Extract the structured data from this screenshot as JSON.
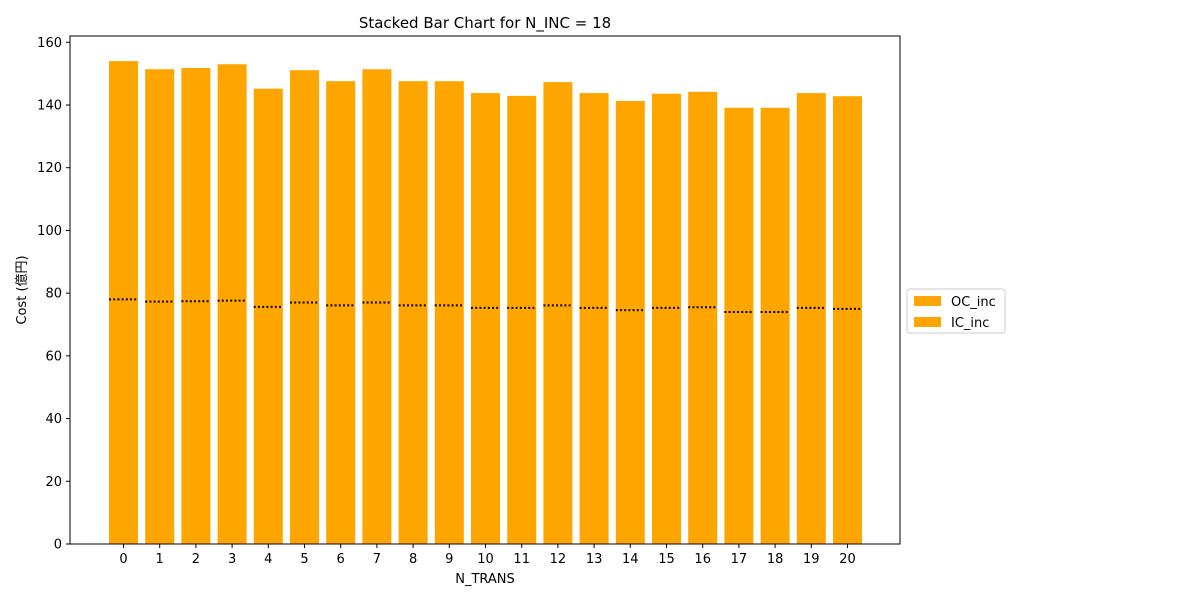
{
  "chart_data": {
    "type": "bar",
    "stacked": true,
    "title": "Stacked Bar Chart for N_INC = 18",
    "xlabel": "N_TRANS",
    "ylabel": "Cost (億円)",
    "categories": [
      "0",
      "1",
      "2",
      "3",
      "4",
      "5",
      "6",
      "7",
      "8",
      "9",
      "10",
      "11",
      "12",
      "13",
      "14",
      "15",
      "16",
      "17",
      "18",
      "19",
      "20"
    ],
    "ylim": [
      0,
      162
    ],
    "yticks": [
      0,
      20,
      40,
      60,
      80,
      100,
      120,
      140,
      160
    ],
    "grid": false,
    "legend_position": "center-right outside",
    "series": [
      {
        "name": "IC_inc",
        "color": "#ffa500",
        "values": [
          78.0,
          77.3,
          77.4,
          77.6,
          75.6,
          77.0,
          76.1,
          77.0,
          76.1,
          76.1,
          75.3,
          75.3,
          76.1,
          75.3,
          74.6,
          75.3,
          75.5,
          74.0,
          74.0,
          75.3,
          75.0
        ]
      },
      {
        "name": "OC_inc",
        "color": "#ffa500",
        "values": [
          76.0,
          74.1,
          74.4,
          75.4,
          69.6,
          74.1,
          71.5,
          74.4,
          71.5,
          71.5,
          68.5,
          67.6,
          71.2,
          68.5,
          66.7,
          68.3,
          68.7,
          65.1,
          65.1,
          68.5,
          67.8
        ]
      }
    ],
    "totals": [
      154.0,
      151.4,
      151.8,
      153.0,
      145.2,
      151.1,
      147.6,
      151.4,
      147.6,
      147.6,
      143.8,
      142.9,
      147.3,
      143.8,
      141.3,
      143.6,
      144.2,
      139.1,
      139.1,
      143.8,
      142.8
    ],
    "divider_style": "dotted black line at IC_inc top"
  },
  "legend": {
    "items": [
      {
        "label": "OC_inc",
        "color": "#ffa500"
      },
      {
        "label": "IC_inc",
        "color": "#ffa500"
      }
    ]
  }
}
